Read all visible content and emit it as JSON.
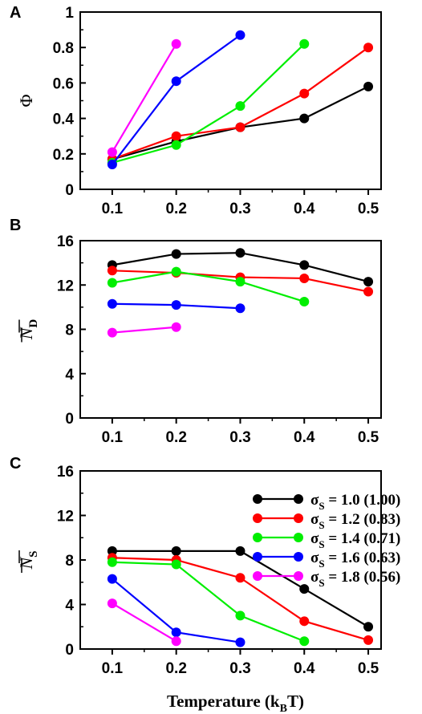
{
  "chart_data": [
    {
      "type": "line",
      "panel": "A",
      "ylabel": "Φ",
      "xlabel": "",
      "x": [
        0.1,
        0.2,
        0.3,
        0.4,
        0.5
      ],
      "xlim": [
        0.05,
        0.52
      ],
      "ylim": [
        0,
        1
      ],
      "xticks": [
        "0.1",
        "0.2",
        "0.3",
        "0.4",
        "0.5"
      ],
      "yticks": [
        "0",
        "0.2",
        "0.4",
        "0.6",
        "0.8",
        "1"
      ],
      "grid": false,
      "series": [
        {
          "name": "σS = 1.0 (1.00)",
          "color": "#000000",
          "values": [
            0.17,
            0.27,
            0.35,
            0.4,
            0.58
          ]
        },
        {
          "name": "σS = 1.2 (0.83)",
          "color": "#ff0000",
          "values": [
            0.17,
            0.3,
            0.35,
            0.54,
            0.8
          ]
        },
        {
          "name": "σS = 1.4 (0.71)",
          "color": "#00ee00",
          "values": [
            0.15,
            0.25,
            0.47,
            0.82,
            null
          ]
        },
        {
          "name": "σS = 1.6 (0.63)",
          "color": "#0000ff",
          "values": [
            0.14,
            0.61,
            0.87,
            null,
            null
          ]
        },
        {
          "name": "σS = 1.8 (0.56)",
          "color": "#ff00ff",
          "values": [
            0.21,
            0.82,
            null,
            null,
            null
          ]
        }
      ]
    },
    {
      "type": "line",
      "panel": "B",
      "ylabel": "N",
      "ylabel_sub": "D",
      "xlabel": "",
      "x": [
        0.1,
        0.2,
        0.3,
        0.4,
        0.5
      ],
      "xlim": [
        0.05,
        0.52
      ],
      "ylim": [
        0,
        16
      ],
      "xticks": [
        "0.1",
        "0.2",
        "0.3",
        "0.4",
        "0.5"
      ],
      "yticks": [
        "0",
        "4",
        "8",
        "12",
        "16"
      ],
      "grid": false,
      "series": [
        {
          "name": "σS = 1.0 (1.00)",
          "color": "#000000",
          "values": [
            13.8,
            14.8,
            14.9,
            13.8,
            12.3
          ]
        },
        {
          "name": "σS = 1.2 (0.83)",
          "color": "#ff0000",
          "values": [
            13.3,
            13.1,
            12.7,
            12.6,
            11.4
          ]
        },
        {
          "name": "σS = 1.4 (0.71)",
          "color": "#00ee00",
          "values": [
            12.2,
            13.2,
            12.3,
            10.5,
            null
          ]
        },
        {
          "name": "σS = 1.6 (0.63)",
          "color": "#0000ff",
          "values": [
            10.3,
            10.2,
            9.9,
            null,
            null
          ]
        },
        {
          "name": "σS = 1.8 (0.56)",
          "color": "#ff00ff",
          "values": [
            7.7,
            8.2,
            null,
            null,
            null
          ]
        }
      ]
    },
    {
      "type": "line",
      "panel": "C",
      "ylabel": "N",
      "ylabel_sub": "S",
      "xlabel": "Temperature (k",
      "xlabel_sub": "B",
      "xlabel_tail": "T)",
      "x": [
        0.1,
        0.2,
        0.3,
        0.4,
        0.5
      ],
      "xlim": [
        0.05,
        0.52
      ],
      "ylim": [
        0,
        16
      ],
      "xticks": [
        "0.1",
        "0.2",
        "0.3",
        "0.4",
        "0.5"
      ],
      "yticks": [
        "0",
        "4",
        "8",
        "12",
        "16"
      ],
      "grid": false,
      "legend_position": "top-right",
      "legend": [
        {
          "sym": "σ",
          "sub": "S",
          "text": " = 1.0 (1.00)",
          "color": "#000000"
        },
        {
          "sym": "σ",
          "sub": "S",
          "text": " = 1.2 (0.83)",
          "color": "#ff0000"
        },
        {
          "sym": "σ",
          "sub": "S",
          "text": " = 1.4 (0.71)",
          "color": "#00ee00"
        },
        {
          "sym": "σ",
          "sub": "S",
          "text": " = 1.6 (0.63)",
          "color": "#0000ff"
        },
        {
          "sym": "σ",
          "sub": "S",
          "text": " = 1.8 (0.56)",
          "color": "#ff00ff"
        }
      ],
      "series": [
        {
          "name": "σS = 1.0 (1.00)",
          "color": "#000000",
          "values": [
            8.8,
            8.8,
            8.8,
            5.4,
            2.0
          ]
        },
        {
          "name": "σS = 1.2 (0.83)",
          "color": "#ff0000",
          "values": [
            8.2,
            8.0,
            6.4,
            2.5,
            0.8
          ]
        },
        {
          "name": "σS = 1.4 (0.71)",
          "color": "#00ee00",
          "values": [
            7.8,
            7.6,
            3.0,
            0.7,
            null
          ]
        },
        {
          "name": "σS = 1.6 (0.63)",
          "color": "#0000ff",
          "values": [
            6.3,
            1.5,
            0.6,
            null,
            null
          ]
        },
        {
          "name": "σS = 1.8 (0.56)",
          "color": "#ff00ff",
          "values": [
            4.1,
            0.7,
            null,
            null,
            null
          ]
        }
      ]
    }
  ]
}
